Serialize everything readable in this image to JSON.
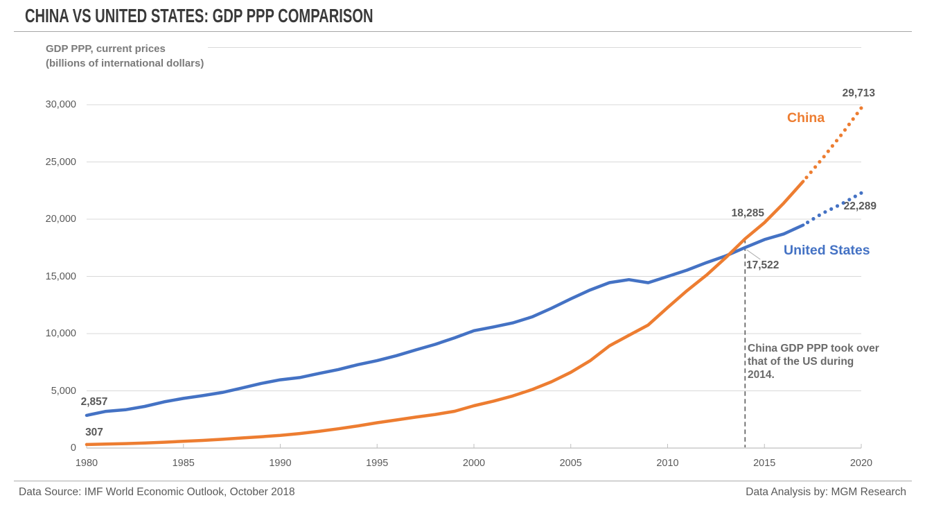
{
  "header": {
    "title": "CHINA VS UNITED STATES: GDP PPP COMPARISON"
  },
  "footer": {
    "source": "Data Source: IMF World Economic Outlook, October 2018",
    "credit": "Data Analysis by: MGM Research"
  },
  "chart_data": {
    "type": "line",
    "title": "CHINA VS UNITED STATES: GDP PPP COMPARISON",
    "y_axis_title_line1": "GDP PPP, current prices",
    "y_axis_title_line2": "(billions of international dollars)",
    "ylim": [
      0,
      35000
    ],
    "ytick_values": [
      0,
      5000,
      10000,
      15000,
      20000,
      25000,
      30000
    ],
    "ytick_labels": [
      "0",
      "5,000",
      "10,000",
      "15,000",
      "20,000",
      "25,000",
      "30,000"
    ],
    "xlim": [
      1980,
      2020
    ],
    "xticks": [
      1980,
      1985,
      1990,
      1995,
      2000,
      2005,
      2010,
      2015,
      2020
    ],
    "grid": "horizontal",
    "x": [
      1980,
      1981,
      1982,
      1983,
      1984,
      1985,
      1986,
      1987,
      1988,
      1989,
      1990,
      1991,
      1992,
      1993,
      1994,
      1995,
      1996,
      1997,
      1998,
      1999,
      2000,
      2001,
      2002,
      2003,
      2004,
      2005,
      2006,
      2007,
      2008,
      2009,
      2010,
      2011,
      2012,
      2013,
      2014,
      2015,
      2016,
      2017,
      2018,
      2019,
      2020
    ],
    "series": [
      {
        "name": "China",
        "color": "#ED7D31",
        "solid_until_year": 2017,
        "projection_style": "dotted",
        "values": [
          307,
          343,
          390,
          445,
          512,
          587,
          664,
          763,
          880,
          985,
          1103,
          1264,
          1462,
          1687,
          1932,
          2210,
          2454,
          2704,
          2931,
          3215,
          3698,
          4100,
          4552,
          5110,
          5788,
          6617,
          7633,
          8936,
          9846,
          10750,
          12280,
          13750,
          15100,
          16629,
          18285,
          19696,
          21409,
          23301,
          25313,
          27438,
          29713
        ]
      },
      {
        "name": "United States",
        "color": "#4472C4",
        "solid_until_year": 2017,
        "projection_style": "dotted",
        "values": [
          2857,
          3207,
          3344,
          3634,
          4038,
          4339,
          4580,
          4855,
          5236,
          5642,
          5963,
          6158,
          6520,
          6859,
          7287,
          7640,
          8073,
          8578,
          9063,
          9631,
          10252,
          10582,
          10936,
          11458,
          12214,
          13037,
          13815,
          14452,
          14713,
          14449,
          14992,
          15543,
          16197,
          16785,
          17522,
          18219,
          18707,
          19485,
          20513,
          21345,
          22289
        ]
      }
    ],
    "annotations": {
      "china_start_label": "307",
      "us_start_label": "2,857",
      "china_2014_label": "18,285",
      "us_2014_label": "17,522",
      "china_2020_label": "29,713",
      "us_2020_label": "22,289",
      "crossover_year": 2014,
      "crossover_note": "China GDP PPP took over that of the US during 2014.",
      "dashed_line_color": "#595959",
      "leader_line_color": "#a6a6a6",
      "gridline_color": "#d9d9d9",
      "axis_line_color": "#bfbfbf"
    }
  }
}
